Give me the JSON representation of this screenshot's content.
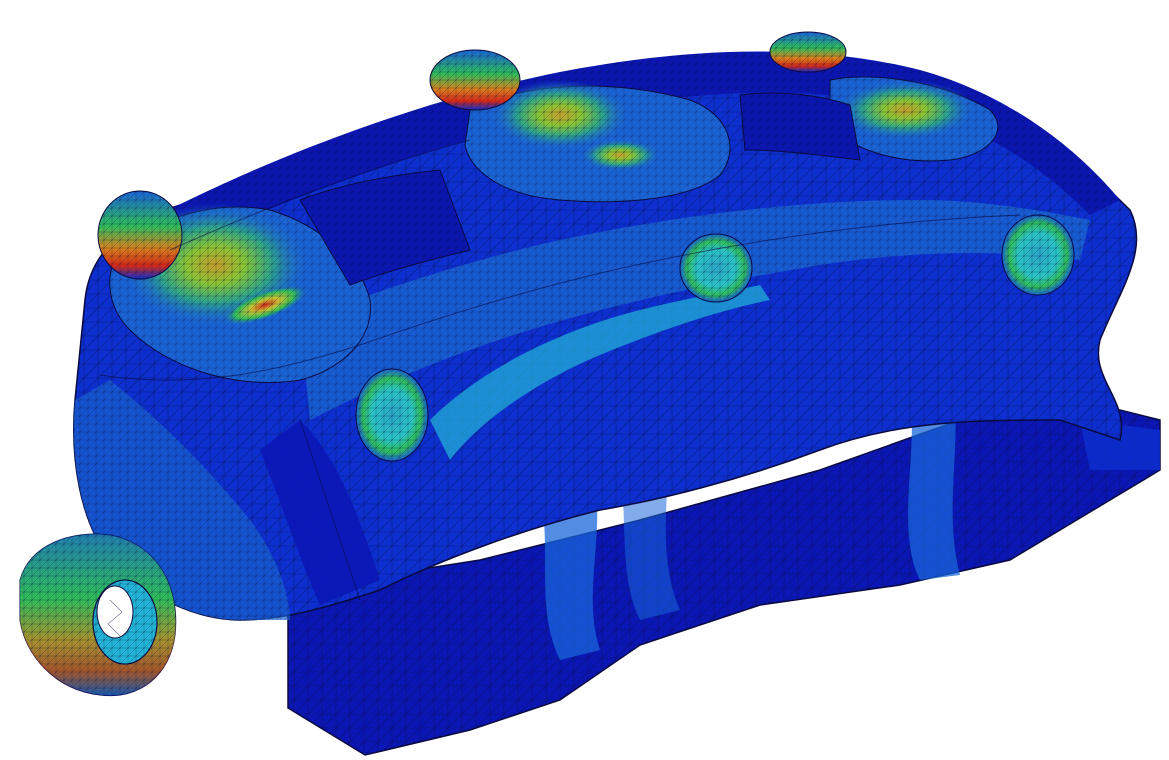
{
  "viewport": {
    "background": "#ffffff",
    "icon": "fea-mesh-model"
  },
  "model": {
    "description_icon": "brake-caliper-mesh",
    "colors": {
      "outline": "#0a0a40",
      "deep_blue": "#0b17b5",
      "mid_blue": "#0d2fd0",
      "light_blue": "#1a66d9",
      "cyan": "#22b7d9",
      "green": "#2fbf5a",
      "yellow_green": "#8cc832",
      "yellow": "#c8c832",
      "orange": "#d9831c",
      "red": "#d92a16",
      "mesh_line": "#0a0a38"
    }
  }
}
